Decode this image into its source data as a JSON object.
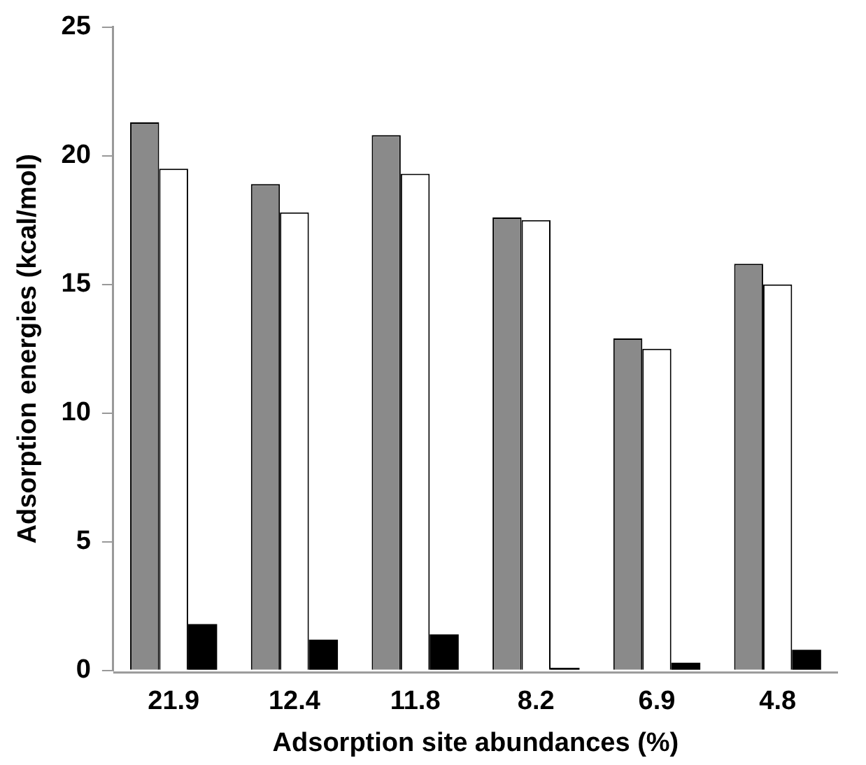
{
  "chart_data": {
    "type": "bar",
    "xlabel": "Adsorption site abundances (%)",
    "ylabel": "Adsorption energies (kcal/mol)",
    "categories": [
      "21.9",
      "12.4",
      "11.8",
      "8.2",
      "6.9",
      "4.8"
    ],
    "series": [
      {
        "color": "#8a8a8a",
        "values": [
          21.3,
          18.9,
          20.8,
          17.6,
          12.9,
          15.8
        ]
      },
      {
        "color": "#ffffff",
        "values": [
          19.5,
          17.8,
          19.3,
          17.5,
          12.5,
          15.0
        ]
      },
      {
        "color": "#000000",
        "values": [
          1.8,
          1.2,
          1.4,
          0.1,
          0.3,
          0.8
        ]
      }
    ],
    "ylim": [
      0,
      25
    ],
    "yticks": [
      0,
      5,
      10,
      15,
      20,
      25
    ],
    "grid": false,
    "legend": false
  }
}
